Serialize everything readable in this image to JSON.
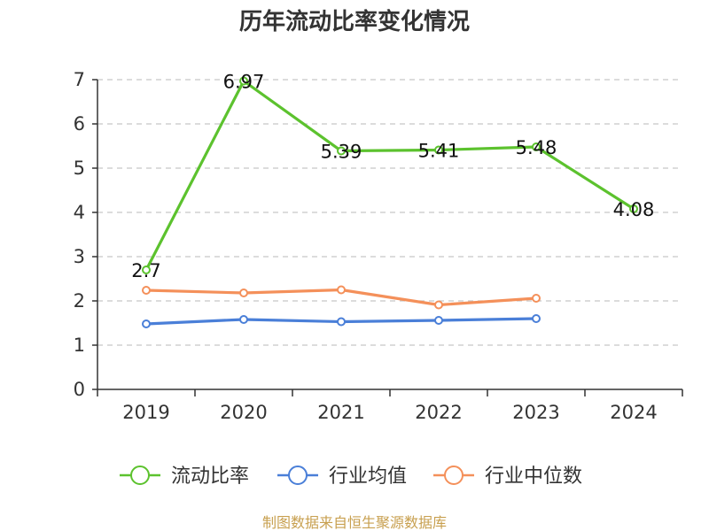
{
  "chart_data": {
    "type": "line",
    "title": "历年流动比率变化情况",
    "categories": [
      "2019",
      "2020",
      "2021",
      "2022",
      "2023",
      "2024"
    ],
    "ylim": [
      0,
      7
    ],
    "yticks": [
      "0",
      "1",
      "2",
      "3",
      "4",
      "5",
      "6",
      "7"
    ],
    "grid": true,
    "legend_position": "bottom",
    "series": [
      {
        "name": "流动比率",
        "color": "#5cc22e",
        "values": [
          2.7,
          6.97,
          5.39,
          5.41,
          5.48,
          4.08
        ],
        "labels": [
          "2.7",
          "6.97",
          "5.39",
          "5.41",
          "5.48",
          "4.08"
        ]
      },
      {
        "name": "行业均值",
        "color": "#4a7fd8",
        "values": [
          1.48,
          1.58,
          1.53,
          1.56,
          1.6,
          null
        ]
      },
      {
        "name": "行业中位数",
        "color": "#f4905a",
        "values": [
          2.24,
          2.18,
          2.25,
          1.91,
          2.06,
          null
        ]
      }
    ],
    "source": "制图数据来自恒生聚源数据库"
  }
}
